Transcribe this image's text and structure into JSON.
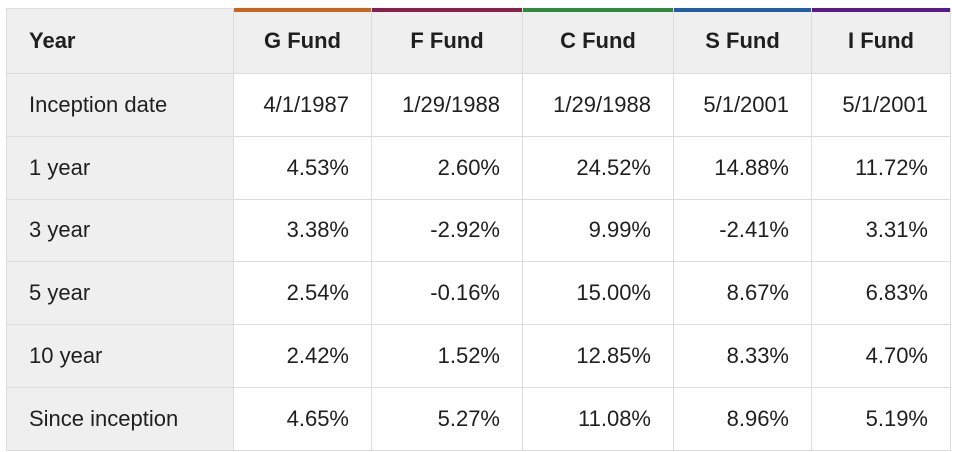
{
  "table": {
    "header": {
      "first_label": "Year",
      "funds": [
        {
          "label": "G Fund",
          "accent": "#c8651b"
        },
        {
          "label": "F Fund",
          "accent": "#8b1f4a"
        },
        {
          "label": "C Fund",
          "accent": "#2e8b3e"
        },
        {
          "label": "S Fund",
          "accent": "#1f5fa8"
        },
        {
          "label": "I Fund",
          "accent": "#5a1a8c"
        }
      ]
    },
    "rows": [
      {
        "label": "Inception date",
        "values": [
          "4/1/1987",
          "1/29/1988",
          "1/29/1988",
          "5/1/2001",
          "5/1/2001"
        ]
      },
      {
        "label": "1 year",
        "values": [
          "4.53%",
          "2.60%",
          "24.52%",
          "14.88%",
          "11.72%"
        ]
      },
      {
        "label": "3 year",
        "values": [
          "3.38%",
          "-2.92%",
          "9.99%",
          "-2.41%",
          "3.31%"
        ]
      },
      {
        "label": "5 year",
        "values": [
          "2.54%",
          "-0.16%",
          "15.00%",
          "8.67%",
          "6.83%"
        ]
      },
      {
        "label": "10 year",
        "values": [
          "2.42%",
          "1.52%",
          "12.85%",
          "8.33%",
          "4.70%"
        ]
      },
      {
        "label": "Since inception",
        "values": [
          "4.65%",
          "5.27%",
          "11.08%",
          "8.96%",
          "5.19%"
        ]
      }
    ]
  }
}
